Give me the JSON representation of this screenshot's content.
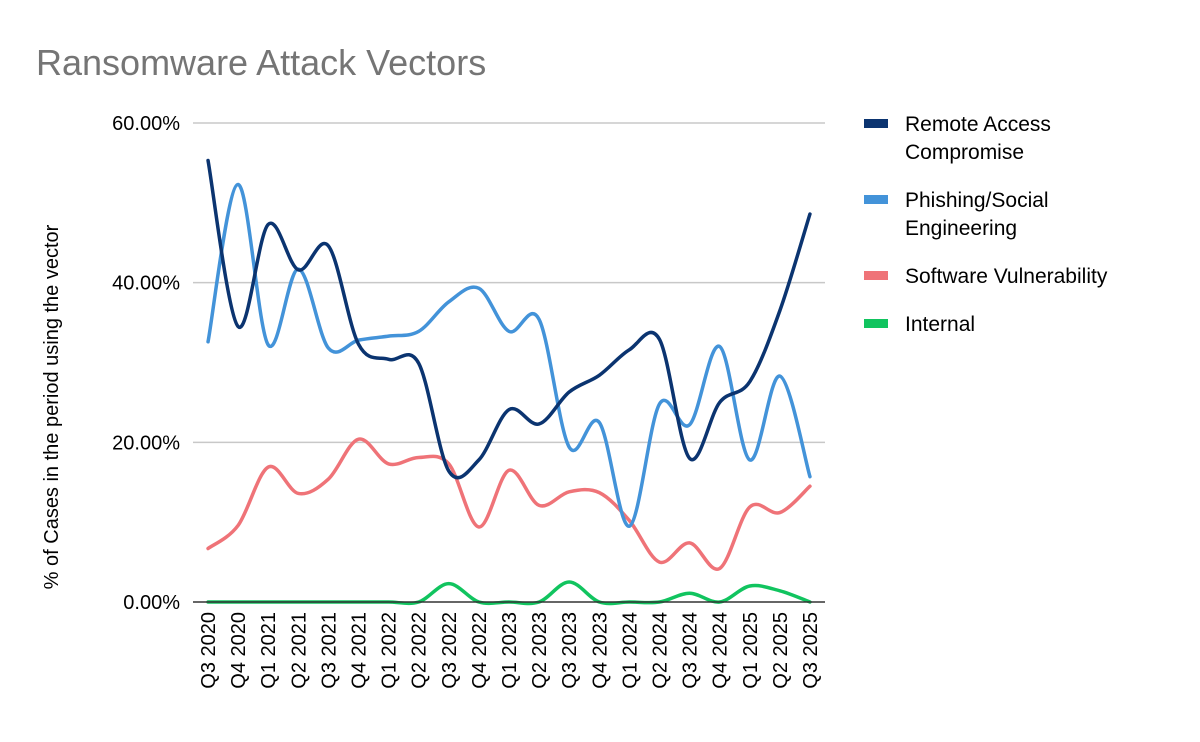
{
  "chart_data": {
    "type": "line",
    "title": "Ransomware Attack Vectors",
    "xlabel": "",
    "ylabel": "% of Cases in the period using the vector",
    "ylim": [
      0,
      60
    ],
    "yticks": [
      0,
      20,
      40,
      60
    ],
    "ytick_labels": [
      "0.00%",
      "20.00%",
      "40.00%",
      "60.00%"
    ],
    "grid": true,
    "legend_position": "right",
    "categories": [
      "Q3 2020",
      "Q4 2020",
      "Q1 2021",
      "Q2 2021",
      "Q3 2021",
      "Q4 2021",
      "Q1 2022",
      "Q2 2022",
      "Q3 2022",
      "Q4 2022",
      "Q1 2023",
      "Q2 2023",
      "Q3 2023",
      "Q4 2023",
      "Q1 2024",
      "Q2 2024",
      "Q3 2024",
      "Q4 2024",
      "Q1 2025",
      "Q2 2025",
      "Q3 2025"
    ],
    "series": [
      {
        "name": "Remote Access Compromise",
        "legend_lines": [
          "Remote Access",
          "Compromise"
        ],
        "color": "#0b3470",
        "values": [
          55.3,
          34.5,
          47.3,
          41.6,
          44.6,
          32.3,
          30.4,
          29.9,
          16.4,
          17.8,
          24.1,
          22.3,
          26.3,
          28.4,
          31.6,
          32.9,
          18.0,
          25.0,
          27.6,
          36.5,
          48.6
        ]
      },
      {
        "name": "Phishing/Social Engineering",
        "legend_lines": [
          "Phishing/Social",
          "Engineering"
        ],
        "color": "#4393d9",
        "values": [
          32.6,
          52.3,
          32.2,
          41.7,
          31.8,
          32.8,
          33.3,
          33.9,
          37.6,
          39.3,
          33.9,
          35.4,
          19.4,
          22.5,
          9.5,
          24.8,
          22.2,
          32.0,
          17.8,
          28.3,
          15.7
        ]
      },
      {
        "name": "Software Vulnerability",
        "legend_lines": [
          "Software Vulnerability"
        ],
        "color": "#ef7378",
        "values": [
          6.7,
          9.6,
          16.9,
          13.6,
          15.4,
          20.4,
          17.3,
          18.1,
          17.3,
          9.4,
          16.5,
          12.1,
          13.8,
          13.7,
          10.2,
          5.0,
          7.4,
          4.2,
          11.9,
          11.2,
          14.5
        ]
      },
      {
        "name": "Internal",
        "legend_lines": [
          "Internal"
        ],
        "color": "#11c45f",
        "values": [
          0,
          0,
          0,
          0,
          0,
          0,
          0,
          0,
          2.3,
          0,
          0,
          0,
          2.5,
          0,
          0,
          0,
          1.1,
          0,
          2.0,
          1.4,
          0
        ]
      }
    ]
  }
}
